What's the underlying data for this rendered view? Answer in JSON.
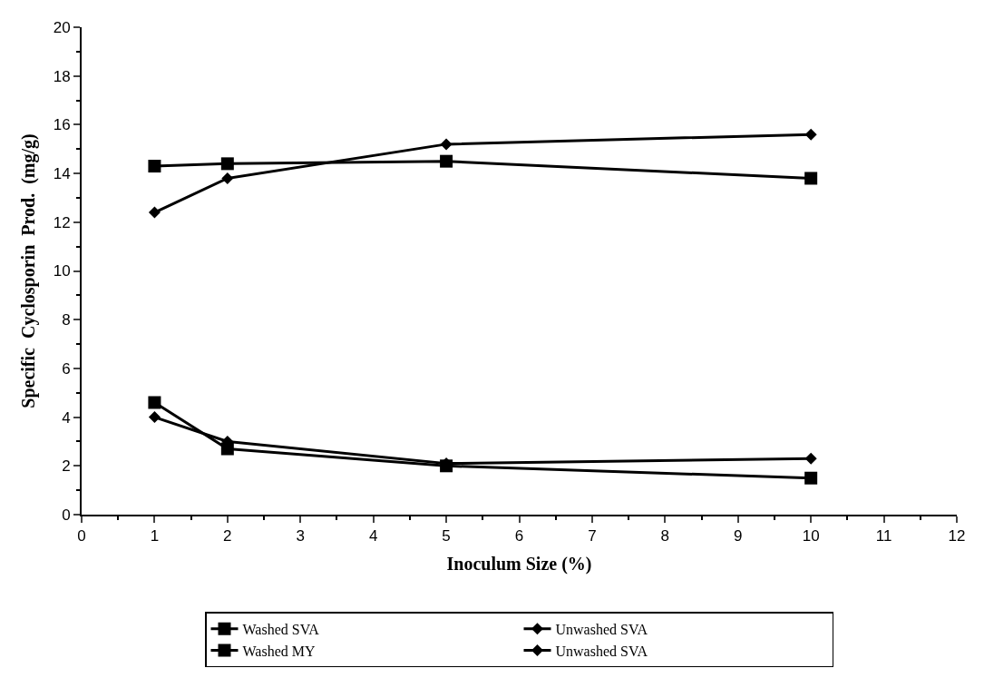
{
  "chart_data": {
    "type": "line",
    "xlabel": "Inoculum Size (%)",
    "ylabel": "Specific  Cyclosporin  Prod.  (mg/g)",
    "x": [
      1,
      2,
      5,
      10
    ],
    "series": [
      {
        "name": "Washed SVA",
        "color": "#000000",
        "marker": "square",
        "values": [
          14.3,
          14.4,
          14.5,
          13.8
        ]
      },
      {
        "name": "Unwashed SVA",
        "color": "#000000",
        "marker": "diamond",
        "values": [
          12.4,
          13.8,
          15.2,
          15.6
        ]
      },
      {
        "name": "Washed MY",
        "color": "#000000",
        "marker": "square",
        "values": [
          4.6,
          2.7,
          2.0,
          1.5
        ]
      },
      {
        "name": "Unwashed SVA",
        "color": "#000000",
        "marker": "diamond",
        "values": [
          4.0,
          3.0,
          2.1,
          2.3
        ]
      }
    ],
    "xlim": [
      0,
      12
    ],
    "xticks": [
      0,
      1,
      2,
      3,
      4,
      5,
      6,
      7,
      8,
      9,
      10,
      11,
      12
    ],
    "ylim": [
      0,
      20
    ],
    "yticks": [
      0,
      2,
      4,
      6,
      8,
      10,
      12,
      14,
      16,
      18,
      20
    ],
    "legend": "bottom",
    "line_style": "solid"
  }
}
